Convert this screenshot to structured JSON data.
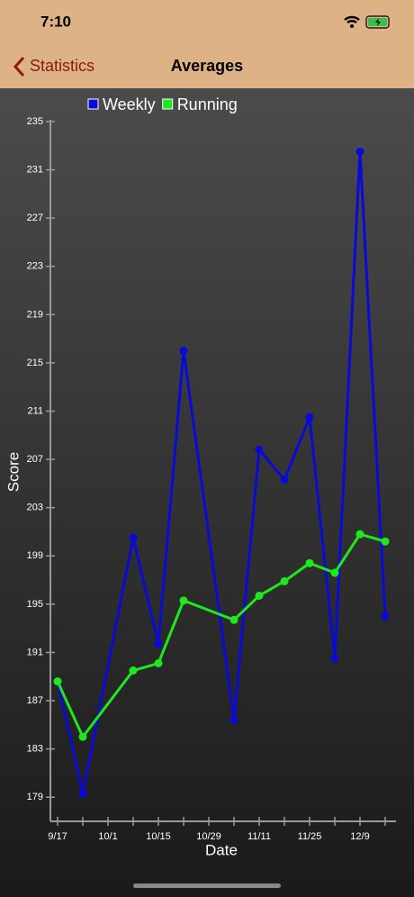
{
  "status_bar": {
    "time": "7:10"
  },
  "nav": {
    "back": "Statistics",
    "title": "Averages"
  },
  "chart_data": {
    "type": "line",
    "categories": [
      "9/17",
      null,
      "10/1",
      null,
      "10/15",
      null,
      "10/29",
      null,
      "11/11",
      null,
      "11/25",
      null,
      "12/9",
      null
    ],
    "series": [
      {
        "name": "Weekly",
        "color": "#0a0ad8",
        "values": [
          188.6,
          179.3,
          null,
          200.5,
          191.7,
          216.0,
          null,
          185.4,
          207.8,
          205.3,
          210.5,
          190.5,
          232.5,
          194.0
        ]
      },
      {
        "name": "Running",
        "color": "#1ee81e",
        "values": [
          188.6,
          184.0,
          null,
          189.5,
          190.1,
          195.3,
          null,
          193.7,
          195.7,
          196.9,
          198.4,
          197.6,
          200.8,
          200.2
        ]
      }
    ],
    "ylim": [
      177,
      235
    ],
    "yticks": [
      179,
      183,
      187,
      191,
      195,
      199,
      203,
      207,
      211,
      215,
      219,
      223,
      227,
      231,
      235
    ],
    "y_label": "Score",
    "x_label": "Date",
    "legend": "top"
  }
}
